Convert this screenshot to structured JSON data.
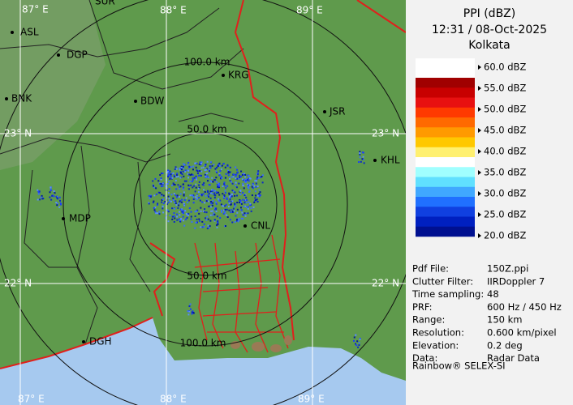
{
  "map": {
    "grid_labels": [
      "87° E",
      "88° E",
      "89° E",
      "87° E",
      "88° E",
      "89° E",
      "23° N",
      "23° N",
      "22° N",
      "22° N"
    ],
    "cities": [
      "SUR",
      "ASL",
      "DGP",
      "BNK",
      "BDW",
      "KRG",
      "JSR",
      "KHL",
      "MDP",
      "CNL",
      "DGH"
    ],
    "range_labels": [
      "100.0 km",
      "50.0 km",
      "50.0 km",
      "100.0 km"
    ]
  },
  "legend": {
    "title": "PPI (dBZ)",
    "time": "12:31 / 08-Oct-2025",
    "site": "Kolkata",
    "scale": [
      "60.0 dBZ",
      "55.0 dBZ",
      "50.0 dBZ",
      "45.0 dBZ",
      "40.0 dBZ",
      "35.0 dBZ",
      "30.0 dBZ",
      "25.0 dBZ",
      "20.0 dBZ"
    ]
  },
  "info": {
    "rows": [
      [
        "Pdf File:",
        "150Z.ppi"
      ],
      [
        "Clutter Filter:",
        "IIRDoppler 7"
      ],
      [
        "Time sampling:",
        "48"
      ],
      [
        "PRF:",
        "600 Hz / 450 Hz"
      ],
      [
        "Range:",
        "150 km"
      ],
      [
        "Resolution:",
        "0.600 km/pixel"
      ],
      [
        "Elevation:",
        "0.2 deg"
      ],
      [
        "Data:",
        "Radar Data"
      ]
    ],
    "footer": "Rainbow® SELEX-SI"
  }
}
